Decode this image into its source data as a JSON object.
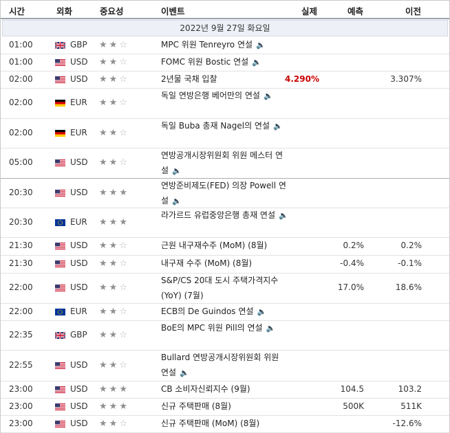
{
  "header": {
    "time": "시간",
    "currency": "외화",
    "importance": "중요성",
    "event": "이벤트",
    "actual": "실제",
    "forecast": "예측",
    "previous": "이전"
  },
  "date_label": "2022년 9월 27일 화요일",
  "colors": {
    "actual": "#c00000",
    "star_on": "#8f8f8f",
    "star_off": "#b5b5b5",
    "date_bg": "#edf0f6"
  },
  "icons": {
    "speaker": "speaker-icon",
    "star_on": "star-filled-icon",
    "star_off": "star-empty-icon"
  },
  "rows": [
    {
      "time": "01:00",
      "flag": "gb",
      "currency": "GBP",
      "stars": 2,
      "event": "MPC 위원 Tenreyro 연설",
      "speaker": true,
      "actual": "",
      "forecast": "",
      "previous": ""
    },
    {
      "time": "01:00",
      "flag": "us",
      "currency": "USD",
      "stars": 2,
      "event": "FOMC 위원 Bostic 연설",
      "speaker": true,
      "actual": "",
      "forecast": "",
      "previous": ""
    },
    {
      "time": "02:00",
      "flag": "us",
      "currency": "USD",
      "stars": 2,
      "event": "2년물 국채 입찰",
      "speaker": false,
      "actual": "4.290%",
      "forecast": "",
      "previous": "3.307%"
    },
    {
      "time": "02:00",
      "flag": "de",
      "currency": "EUR",
      "stars": 2,
      "event": "독일 연방은행 베어만의 연설",
      "speaker": true,
      "actual": "",
      "forecast": "",
      "previous": ""
    },
    {
      "time": "02:00",
      "flag": "de",
      "currency": "EUR",
      "stars": 2,
      "event": "독일 Buba 총재 Nagel의 연설",
      "speaker": true,
      "actual": "",
      "forecast": "",
      "previous": ""
    },
    {
      "time": "05:00",
      "flag": "us",
      "currency": "USD",
      "stars": 2,
      "event": "연방공개시장위원회 위원 메스터 연설",
      "speaker": true,
      "actual": "",
      "forecast": "",
      "previous": ""
    },
    {
      "time": "20:30",
      "flag": "us",
      "currency": "USD",
      "stars": 3,
      "event": "연방준비제도(FED) 의장 Powell 연설",
      "speaker": true,
      "actual": "",
      "forecast": "",
      "previous": ""
    },
    {
      "time": "20:30",
      "flag": "eu",
      "currency": "EUR",
      "stars": 3,
      "event": "라가르드 유럽중앙은행 총재 연설",
      "speaker": true,
      "actual": "",
      "forecast": "",
      "previous": ""
    },
    {
      "time": "21:30",
      "flag": "us",
      "currency": "USD",
      "stars": 2,
      "event": "근원 내구재수주 (MoM) (8월)",
      "speaker": false,
      "actual": "",
      "forecast": "0.2%",
      "previous": "0.2%"
    },
    {
      "time": "21:30",
      "flag": "us",
      "currency": "USD",
      "stars": 2,
      "event": "내구재 수주 (MoM) (8월)",
      "speaker": false,
      "actual": "",
      "forecast": "-0.4%",
      "previous": "-0.1%"
    },
    {
      "time": "22:00",
      "flag": "us",
      "currency": "USD",
      "stars": 2,
      "event": "S&P/CS 20대 도시 주택가격지수 (YoY) (7월)",
      "speaker": false,
      "actual": "",
      "forecast": "17.0%",
      "previous": "18.6%"
    },
    {
      "time": "22:00",
      "flag": "eu",
      "currency": "EUR",
      "stars": 2,
      "event": "ECB의 De Guindos 연설",
      "speaker": true,
      "actual": "",
      "forecast": "",
      "previous": ""
    },
    {
      "time": "22:35",
      "flag": "gb",
      "currency": "GBP",
      "stars": 2,
      "event": "BoE의 MPC 위원 Pill의 연설",
      "speaker": true,
      "actual": "",
      "forecast": "",
      "previous": ""
    },
    {
      "time": "22:55",
      "flag": "us",
      "currency": "USD",
      "stars": 2,
      "event": "Bullard 연방공개시장위원회 위원 연설",
      "speaker": true,
      "actual": "",
      "forecast": "",
      "previous": ""
    },
    {
      "time": "23:00",
      "flag": "us",
      "currency": "USD",
      "stars": 3,
      "event": "CB 소비자신뢰지수 (9월)",
      "speaker": false,
      "actual": "",
      "forecast": "104.5",
      "previous": "103.2"
    },
    {
      "time": "23:00",
      "flag": "us",
      "currency": "USD",
      "stars": 3,
      "event": "신규 주택판매 (8월)",
      "speaker": false,
      "actual": "",
      "forecast": "500K",
      "previous": "511K"
    },
    {
      "time": "23:00",
      "flag": "us",
      "currency": "USD",
      "stars": 2,
      "event": "신규 주택판매 (MoM) (8월)",
      "speaker": false,
      "actual": "",
      "forecast": "",
      "previous": "-12.6%"
    }
  ]
}
